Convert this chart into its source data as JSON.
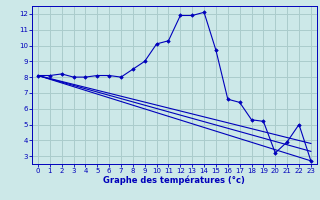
{
  "title": "Graphe des températures (°c)",
  "background_color": "#cce8e8",
  "grid_color": "#aacccc",
  "line_color": "#0000bb",
  "xlim": [
    -0.5,
    23.5
  ],
  "ylim": [
    2.5,
    12.5
  ],
  "xticks": [
    0,
    1,
    2,
    3,
    4,
    5,
    6,
    7,
    8,
    9,
    10,
    11,
    12,
    13,
    14,
    15,
    16,
    17,
    18,
    19,
    20,
    21,
    22,
    23
  ],
  "yticks": [
    3,
    4,
    5,
    6,
    7,
    8,
    9,
    10,
    11,
    12
  ],
  "main_x": [
    0,
    1,
    2,
    3,
    4,
    5,
    6,
    7,
    8,
    9,
    10,
    11,
    12,
    13,
    14,
    15,
    16,
    17,
    18,
    19,
    20,
    21,
    22,
    23
  ],
  "main_y": [
    8.1,
    8.1,
    8.2,
    8.0,
    8.0,
    8.1,
    8.1,
    8.0,
    8.5,
    9.0,
    10.1,
    10.3,
    11.9,
    11.9,
    12.1,
    9.7,
    6.6,
    6.4,
    5.3,
    5.2,
    3.2,
    3.9,
    5.0,
    2.7
  ],
  "line2": {
    "x": [
      0,
      23
    ],
    "y": [
      8.1,
      2.7
    ]
  },
  "line3": {
    "x": [
      0,
      23
    ],
    "y": [
      8.1,
      3.3
    ]
  },
  "line4": {
    "x": [
      0,
      23
    ],
    "y": [
      8.1,
      3.8
    ]
  }
}
